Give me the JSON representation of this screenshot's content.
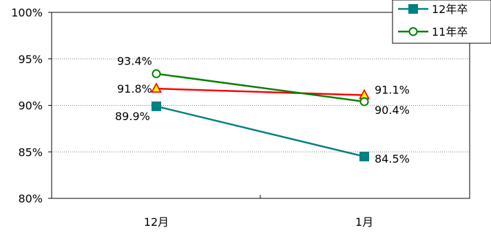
{
  "chart_data": {
    "type": "line",
    "categories": [
      "12月",
      "1月"
    ],
    "ylim": [
      80,
      100
    ],
    "yticks": [
      "80%",
      "85%",
      "90%",
      "95%",
      "100%"
    ],
    "ytick_values": [
      80,
      85,
      90,
      95,
      100
    ],
    "grid": "horizontal dotted",
    "legend_position": "top-right",
    "series": [
      {
        "name": "12年卒",
        "values": [
          89.9,
          84.5
        ],
        "labels": [
          "89.9%",
          "84.5%"
        ],
        "color": "#008080",
        "marker": "filled-square"
      },
      {
        "name": "11年卒",
        "values": [
          93.4,
          90.4
        ],
        "labels": [
          "93.4%",
          "90.4%"
        ],
        "color": "#008000",
        "marker": "open-circle"
      },
      {
        "name": "",
        "values": [
          91.8,
          91.1
        ],
        "labels": [
          "91.8%",
          "91.1%"
        ],
        "color": "#ff0000",
        "marker": "yellow-triangle"
      }
    ]
  }
}
